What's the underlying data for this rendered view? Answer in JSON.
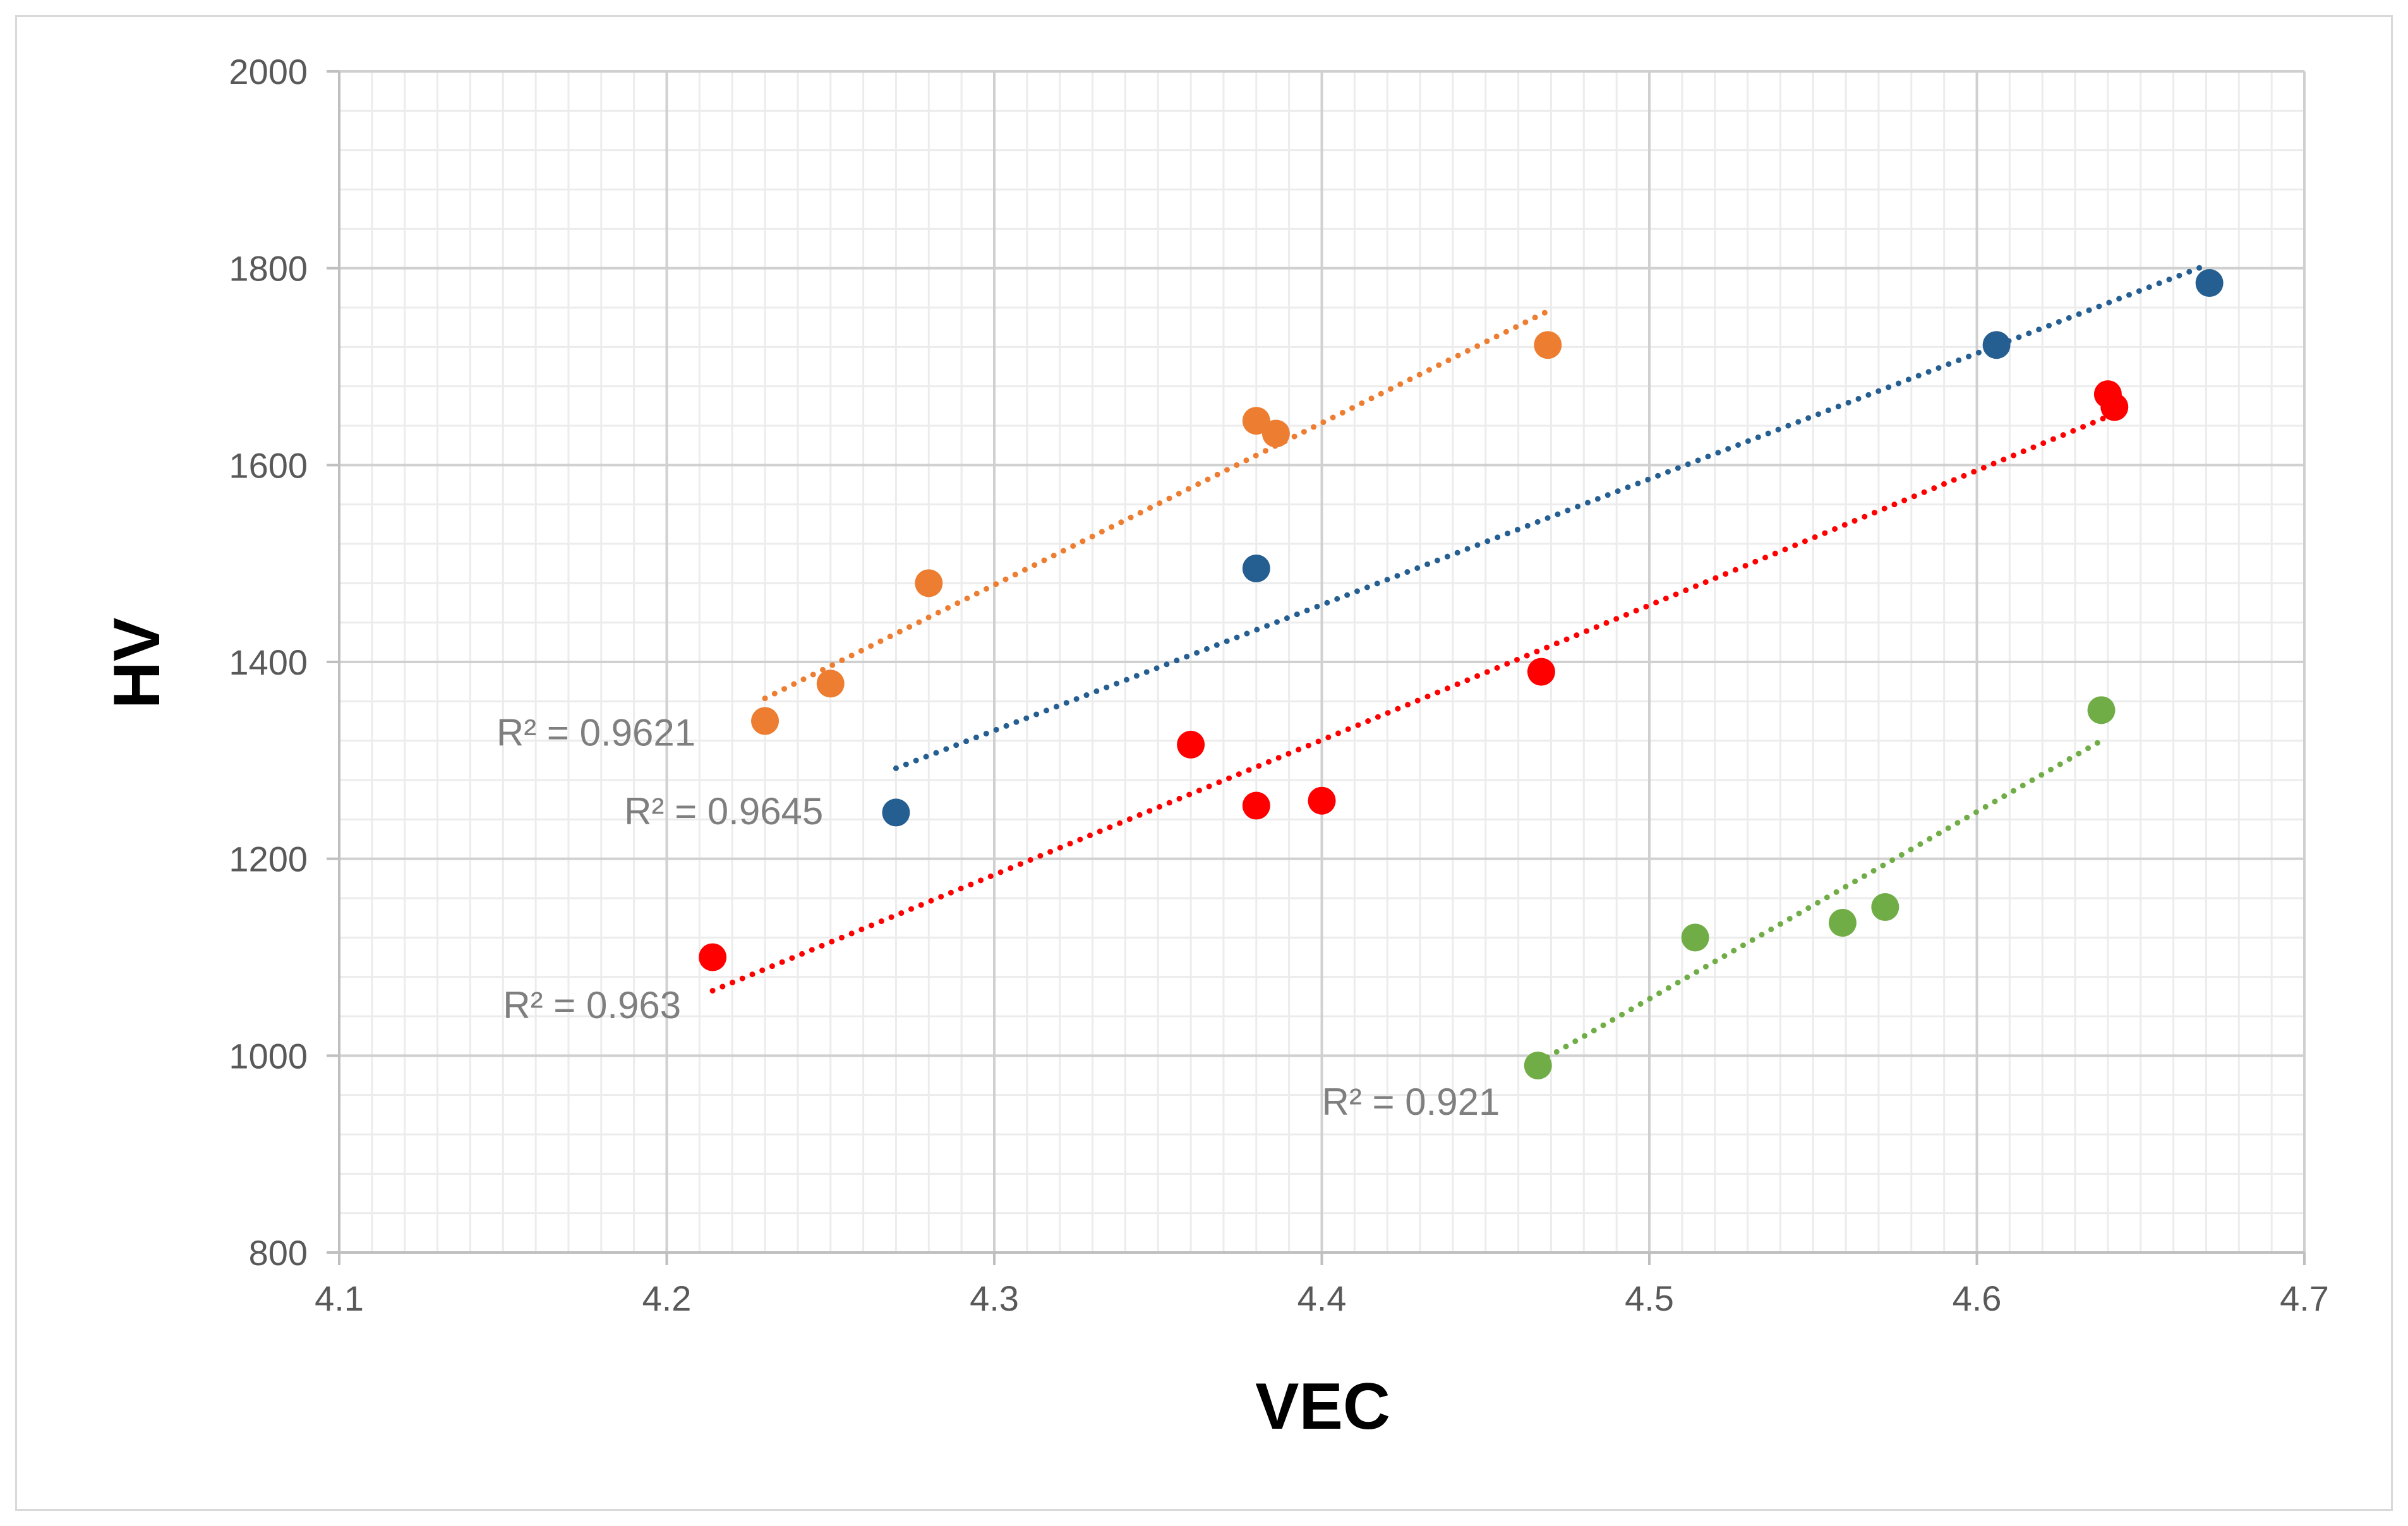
{
  "chart_data": {
    "type": "scatter",
    "xlabel": "VEC",
    "ylabel": "HV",
    "xlim": [
      4.1,
      4.7
    ],
    "ylim": [
      800,
      2000
    ],
    "x_ticks": [
      "4.1",
      "4.2",
      "4.3",
      "4.4",
      "4.5",
      "4.6",
      "4.7"
    ],
    "y_ticks": [
      "800",
      "1000",
      "1200",
      "1400",
      "1600",
      "1800",
      "2000"
    ],
    "grid": true,
    "series": [
      {
        "name": "orange",
        "color": "#ed7d31",
        "points": [
          [
            4.23,
            1340
          ],
          [
            4.25,
            1378
          ],
          [
            4.28,
            1480
          ],
          [
            4.38,
            1645
          ],
          [
            4.386,
            1632
          ],
          [
            4.469,
            1722
          ]
        ],
        "trendline": {
          "x": [
            4.23,
            4.47
          ],
          "y": [
            1363,
            1758
          ]
        },
        "r2_label": "R² = 0.9621",
        "r2_anchor": [
          4.148,
          1315
        ]
      },
      {
        "name": "blue",
        "color": "#255e91",
        "points": [
          [
            4.27,
            1247
          ],
          [
            4.38,
            1495
          ],
          [
            4.606,
            1722
          ],
          [
            4.671,
            1785
          ]
        ],
        "trendline": {
          "x": [
            4.27,
            4.67
          ],
          "y": [
            1292,
            1803
          ]
        },
        "r2_label": "R² = 0.9645",
        "r2_anchor": [
          4.187,
          1235
        ]
      },
      {
        "name": "red",
        "color": "#ff0000",
        "points": [
          [
            4.214,
            1100
          ],
          [
            4.36,
            1316
          ],
          [
            4.38,
            1254
          ],
          [
            4.4,
            1259
          ],
          [
            4.467,
            1390
          ],
          [
            4.64,
            1672
          ],
          [
            4.642,
            1659
          ]
        ],
        "trendline": {
          "x": [
            4.214,
            4.642
          ],
          "y": [
            1066,
            1652
          ]
        },
        "r2_label": "R² = 0.963",
        "r2_anchor": [
          4.15,
          1038
        ]
      },
      {
        "name": "green",
        "color": "#70ad47",
        "points": [
          [
            4.466,
            990
          ],
          [
            4.514,
            1120
          ],
          [
            4.559,
            1135
          ],
          [
            4.572,
            1151
          ],
          [
            4.638,
            1351
          ]
        ],
        "trendline": {
          "x": [
            4.466,
            4.638
          ],
          "y": [
            993,
            1320
          ]
        },
        "r2_label": "R² = 0.921",
        "r2_anchor": [
          4.4,
          940
        ]
      }
    ]
  }
}
